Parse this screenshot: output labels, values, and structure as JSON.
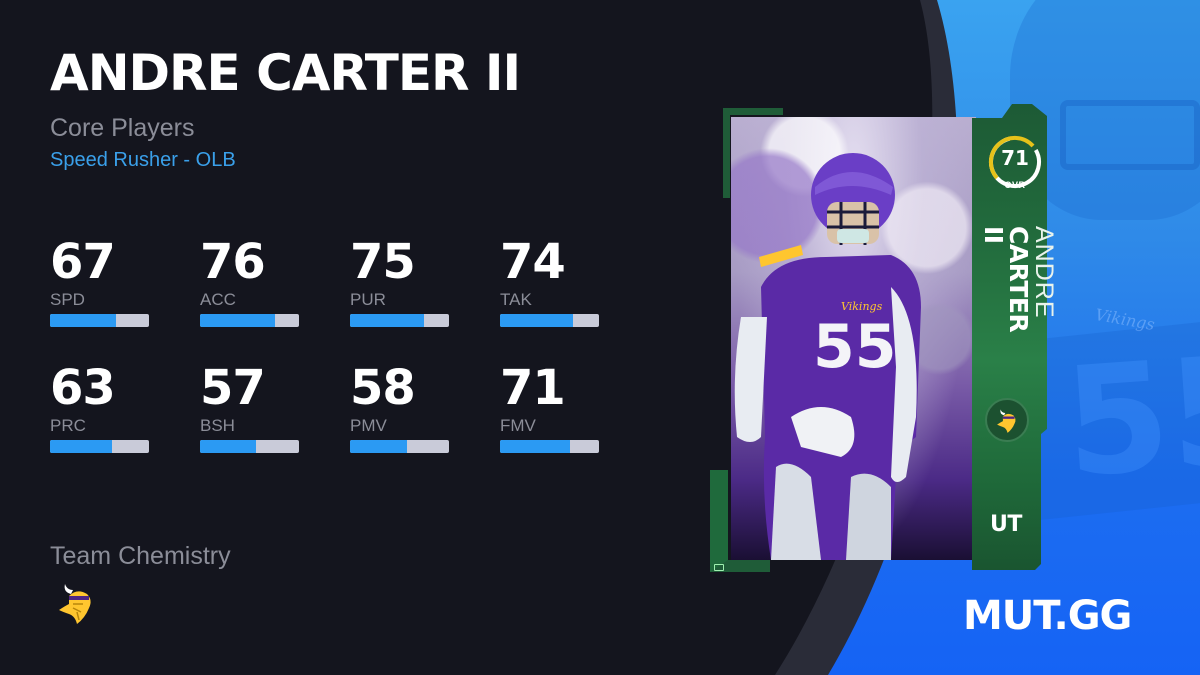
{
  "player": {
    "name": "ANDRE CARTER II",
    "first_name": "ANDRE",
    "last_name": "CARTER II",
    "program": "Core Players",
    "archetype": "Speed Rusher - OLB"
  },
  "stats": [
    {
      "label": "SPD",
      "value": 67
    },
    {
      "label": "ACC",
      "value": 76
    },
    {
      "label": "PUR",
      "value": 75
    },
    {
      "label": "TAK",
      "value": 74
    },
    {
      "label": "PRC",
      "value": 63
    },
    {
      "label": "BSH",
      "value": 57
    },
    {
      "label": "PMV",
      "value": 58
    },
    {
      "label": "FMV",
      "value": 71
    }
  ],
  "team_chemistry": {
    "label": "Team Chemistry",
    "team_icon": "vikings-logo-icon"
  },
  "card": {
    "ovr": "71",
    "ovr_label": "OVR",
    "jersey_number": "55",
    "jersey_wordmark": "Vikings",
    "mode_badge": "UT",
    "team_icon": "vikings-logo-icon"
  },
  "brand": {
    "logo_text": "MUT.GG"
  },
  "colors": {
    "background": "#14151e",
    "accent_blue": "#2b9af3",
    "bar_track": "#c9cbd9",
    "archetype_text": "#3aa0ea",
    "card_green": "#226c3d",
    "ovr_ring_yellow": "#e6c21a",
    "vikings_purple": "#4f2683"
  }
}
